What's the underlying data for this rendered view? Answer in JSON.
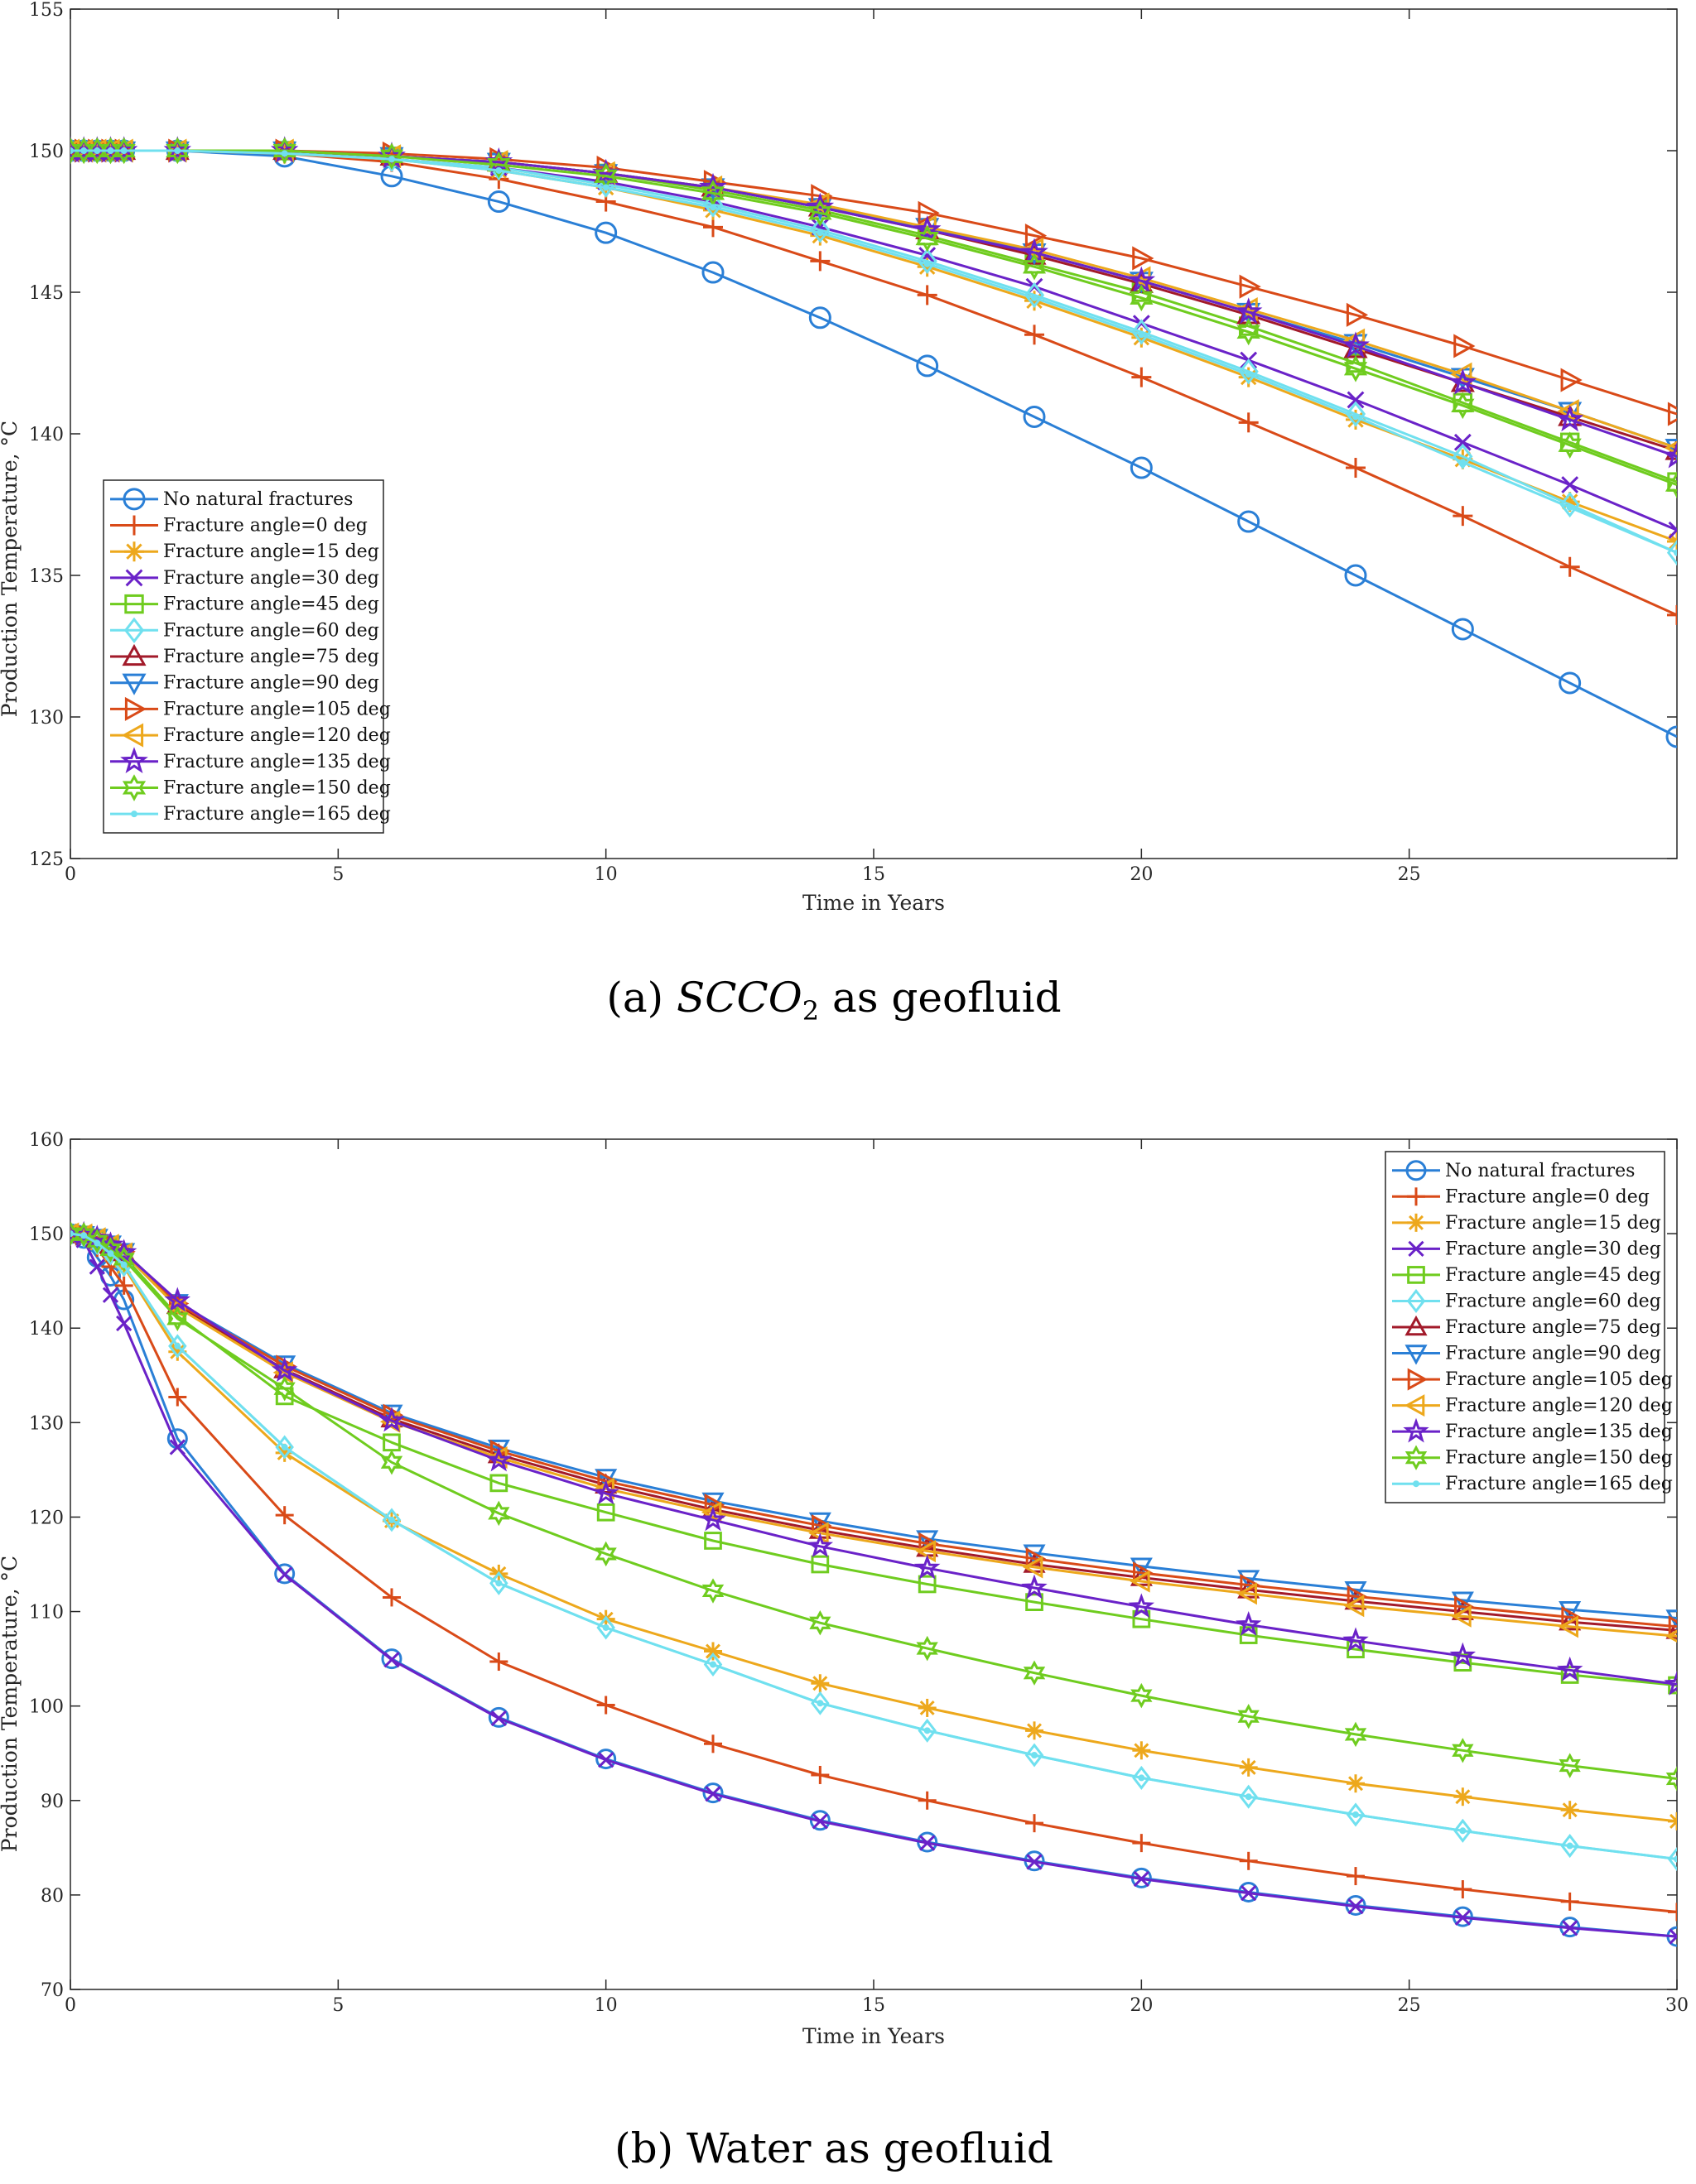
{
  "captions": [
    {
      "prefix": "(a) ",
      "math_main": "SCCO",
      "math_sub": "2",
      "suffix": " as geofluid"
    },
    {
      "prefix": "(b) Water as geofluid",
      "math_main": "",
      "math_sub": "",
      "suffix": ""
    }
  ],
  "series_style": [
    {
      "name": "No natural fractures",
      "color": "#2a7fd6",
      "marker": "circle"
    },
    {
      "name": "Fracture angle=0 deg",
      "color": "#d94a18",
      "marker": "plus"
    },
    {
      "name": "Fracture angle=15 deg",
      "color": "#eda81c",
      "marker": "asterisk"
    },
    {
      "name": "Fracture angle=30 deg",
      "color": "#6a22c8",
      "marker": "cross"
    },
    {
      "name": "Fracture angle=45 deg",
      "color": "#6fcc1f",
      "marker": "square"
    },
    {
      "name": "Fracture angle=60 deg",
      "color": "#70e0ef",
      "marker": "diamond"
    },
    {
      "name": "Fracture angle=75 deg",
      "color": "#a21a2a",
      "marker": "triangle-up"
    },
    {
      "name": "Fracture angle=90 deg",
      "color": "#2a7fd6",
      "marker": "triangle-down"
    },
    {
      "name": "Fracture angle=105 deg",
      "color": "#d94a18",
      "marker": "triangle-right"
    },
    {
      "name": "Fracture angle=120 deg",
      "color": "#eda81c",
      "marker": "triangle-left"
    },
    {
      "name": "Fracture angle=135 deg",
      "color": "#6a22c8",
      "marker": "pentagram"
    },
    {
      "name": "Fracture angle=150 deg",
      "color": "#6fcc1f",
      "marker": "hexagram"
    },
    {
      "name": "Fracture angle=165 deg",
      "color": "#70e0ef",
      "marker": "point"
    }
  ],
  "chart_data": [
    {
      "type": "line",
      "title": "",
      "xlabel": "Time in Years",
      "ylabel": "Production Temperature, °C",
      "xlim": [
        0,
        30
      ],
      "ylim": [
        125,
        155
      ],
      "xticks": [
        0,
        5,
        10,
        15,
        20,
        25
      ],
      "yticks": [
        125,
        130,
        135,
        140,
        145,
        150,
        155
      ],
      "grid": false,
      "legend_position": "lower-left",
      "x": [
        0,
        0.25,
        0.5,
        0.75,
        1,
        2,
        4,
        6,
        8,
        10,
        12,
        14,
        16,
        18,
        20,
        22,
        24,
        26,
        28,
        30
      ],
      "series": [
        {
          "name": "No natural fractures",
          "values": [
            150,
            150,
            150,
            150,
            150,
            150,
            149.8,
            149.1,
            148.2,
            147.1,
            145.7,
            144.1,
            142.4,
            140.6,
            138.8,
            136.9,
            135.0,
            133.1,
            131.2,
            129.3
          ]
        },
        {
          "name": "Fracture angle=0 deg",
          "values": [
            150,
            150,
            150,
            150,
            150,
            150,
            149.9,
            149.6,
            149.0,
            148.2,
            147.3,
            146.1,
            144.9,
            143.5,
            142.0,
            140.4,
            138.8,
            137.1,
            135.3,
            133.6
          ]
        },
        {
          "name": "Fracture angle=15 deg",
          "values": [
            150,
            150,
            150,
            150,
            150,
            150,
            149.9,
            149.7,
            149.3,
            148.7,
            147.9,
            147.0,
            145.9,
            144.7,
            143.4,
            142.0,
            140.5,
            139.1,
            137.6,
            136.2
          ]
        },
        {
          "name": "Fracture angle=30 deg",
          "values": [
            150,
            150,
            150,
            150,
            150,
            150,
            150,
            149.7,
            149.4,
            148.9,
            148.2,
            147.3,
            146.3,
            145.2,
            143.9,
            142.6,
            141.2,
            139.7,
            138.2,
            136.6
          ]
        },
        {
          "name": "Fracture angle=45 deg",
          "values": [
            150,
            150,
            150,
            150,
            150,
            150,
            150,
            149.8,
            149.6,
            149.2,
            148.6,
            147.9,
            147.0,
            146.0,
            145.0,
            143.8,
            142.5,
            141.1,
            139.7,
            138.3
          ]
        },
        {
          "name": "Fracture angle=60 deg",
          "values": [
            150,
            150,
            150,
            150,
            150,
            150,
            150,
            149.7,
            149.4,
            148.8,
            148.1,
            147.2,
            146.1,
            144.9,
            143.6,
            142.2,
            140.7,
            139.2,
            137.5,
            135.8
          ]
        },
        {
          "name": "Fracture angle=75 deg",
          "values": [
            150,
            150,
            150,
            150,
            150,
            150,
            150,
            149.8,
            149.6,
            149.2,
            148.7,
            148.0,
            147.2,
            146.3,
            145.3,
            144.2,
            143.0,
            141.8,
            140.6,
            139.4
          ]
        },
        {
          "name": "Fracture angle=90 deg",
          "values": [
            150,
            150,
            150,
            150,
            150,
            150,
            150,
            149.8,
            149.6,
            149.2,
            148.7,
            148.0,
            147.3,
            146.4,
            145.4,
            144.3,
            143.2,
            142.0,
            140.8,
            139.5
          ]
        },
        {
          "name": "Fracture angle=105 deg",
          "values": [
            150,
            150,
            150,
            150,
            150,
            150,
            150,
            149.9,
            149.7,
            149.4,
            148.9,
            148.4,
            147.8,
            147.0,
            146.2,
            145.2,
            144.2,
            143.1,
            141.9,
            140.7
          ]
        },
        {
          "name": "Fracture angle=120 deg",
          "values": [
            150,
            150,
            150,
            150,
            150,
            150,
            150,
            149.8,
            149.6,
            149.2,
            148.7,
            148.1,
            147.3,
            146.5,
            145.5,
            144.4,
            143.3,
            142.1,
            140.8,
            139.5
          ]
        },
        {
          "name": "Fracture angle=135 deg",
          "values": [
            150,
            150,
            150,
            150,
            150,
            150,
            150,
            149.8,
            149.6,
            149.2,
            148.7,
            148.0,
            147.2,
            146.4,
            145.4,
            144.3,
            143.1,
            141.8,
            140.5,
            139.2
          ]
        },
        {
          "name": "Fracture angle=150 deg",
          "values": [
            150,
            150,
            150,
            150,
            150,
            150,
            150,
            149.8,
            149.5,
            149.1,
            148.5,
            147.8,
            146.9,
            145.9,
            144.8,
            143.6,
            142.3,
            141.0,
            139.6,
            138.2
          ]
        },
        {
          "name": "Fracture angle=165 deg",
          "values": [
            150,
            150,
            150,
            150,
            150,
            150,
            149.9,
            149.7,
            149.3,
            148.7,
            148.0,
            147.1,
            146.0,
            144.8,
            143.5,
            142.1,
            140.6,
            139.0,
            137.4,
            135.8
          ]
        }
      ]
    },
    {
      "type": "line",
      "title": "",
      "xlabel": "Time in Years",
      "ylabel": "Production Temperature, °C",
      "xlim": [
        0,
        30
      ],
      "ylim": [
        70,
        160
      ],
      "xticks": [
        0,
        5,
        10,
        15,
        20,
        25,
        30
      ],
      "yticks": [
        70,
        80,
        90,
        100,
        110,
        120,
        130,
        140,
        150,
        160
      ],
      "grid": false,
      "legend_position": "top-right",
      "x": [
        0,
        0.25,
        0.5,
        0.75,
        1,
        2,
        4,
        6,
        8,
        10,
        12,
        14,
        16,
        18,
        20,
        22,
        24,
        26,
        28,
        30
      ],
      "series": [
        {
          "name": "No natural fractures",
          "values": [
            150,
            149.5,
            147.5,
            145.5,
            143.0,
            128.3,
            114.0,
            105.0,
            98.8,
            94.4,
            90.8,
            87.9,
            85.6,
            83.6,
            81.8,
            80.3,
            78.9,
            77.7,
            76.6,
            75.6
          ]
        },
        {
          "name": "Fracture angle=0 deg",
          "values": [
            150,
            149.7,
            148.5,
            146.5,
            144.5,
            132.7,
            120.2,
            111.5,
            104.7,
            100.1,
            96.0,
            92.7,
            90.0,
            87.6,
            85.5,
            83.6,
            82.0,
            80.6,
            79.3,
            78.2
          ]
        },
        {
          "name": "Fracture angle=15 deg",
          "values": [
            150,
            149.8,
            149.0,
            147.8,
            146.5,
            137.5,
            126.8,
            119.6,
            114.0,
            109.2,
            105.8,
            102.4,
            99.8,
            97.4,
            95.3,
            93.5,
            91.8,
            90.4,
            89.0,
            87.8
          ]
        },
        {
          "name": "Fracture angle=30 deg",
          "values": [
            150,
            149.3,
            146.5,
            143.5,
            140.5,
            127.4,
            113.9,
            104.9,
            98.7,
            94.3,
            90.7,
            87.8,
            85.5,
            83.5,
            81.7,
            80.2,
            78.8,
            77.6,
            76.5,
            75.6
          ]
        },
        {
          "name": "Fracture angle=45 deg",
          "values": [
            150,
            149.9,
            149.4,
            148.6,
            147.6,
            141.3,
            132.8,
            127.9,
            123.6,
            120.5,
            117.5,
            115.0,
            112.9,
            111.0,
            109.2,
            107.5,
            106.0,
            104.6,
            103.3,
            102.2
          ]
        },
        {
          "name": "Fracture angle=60 deg",
          "values": [
            150,
            149.8,
            149.0,
            147.9,
            146.7,
            138.1,
            127.4,
            119.7,
            113.0,
            108.3,
            104.4,
            100.3,
            97.4,
            94.8,
            92.4,
            90.4,
            88.5,
            86.8,
            85.2,
            83.8
          ]
        },
        {
          "name": "Fracture angle=75 deg",
          "values": [
            150,
            149.9,
            149.5,
            148.8,
            148.0,
            142.4,
            135.6,
            130.4,
            126.6,
            123.4,
            120.8,
            118.6,
            116.7,
            115.0,
            113.6,
            112.3,
            111.1,
            110.0,
            108.9,
            108.0
          ]
        },
        {
          "name": "Fracture angle=90 deg",
          "values": [
            150,
            149.9,
            149.6,
            148.9,
            148.1,
            142.7,
            136.2,
            131.0,
            127.3,
            124.2,
            121.7,
            119.6,
            117.7,
            116.2,
            114.8,
            113.5,
            112.3,
            111.2,
            110.2,
            109.3
          ]
        },
        {
          "name": "Fracture angle=105 deg",
          "values": [
            150,
            149.9,
            149.6,
            148.9,
            148.1,
            142.6,
            136.0,
            130.8,
            127.0,
            123.8,
            121.3,
            119.1,
            117.2,
            115.6,
            114.1,
            112.8,
            111.6,
            110.5,
            109.4,
            108.4
          ]
        },
        {
          "name": "Fracture angle=120 deg",
          "values": [
            150,
            149.9,
            149.5,
            148.8,
            147.9,
            142.2,
            135.3,
            130.1,
            126.3,
            123.0,
            120.5,
            118.3,
            116.4,
            114.7,
            113.2,
            111.9,
            110.6,
            109.5,
            108.4,
            107.4
          ]
        },
        {
          "name": "Fracture angle=135 deg",
          "values": [
            150,
            149.9,
            149.5,
            148.8,
            148.0,
            142.9,
            135.5,
            130.2,
            126.0,
            122.5,
            119.7,
            116.9,
            114.6,
            112.5,
            110.5,
            108.6,
            106.9,
            105.3,
            103.8,
            102.3
          ]
        },
        {
          "name": "Fracture angle=150 deg",
          "values": [
            150,
            149.9,
            149.2,
            148.3,
            147.3,
            141.0,
            133.6,
            125.8,
            120.4,
            116.1,
            112.2,
            108.8,
            106.1,
            103.5,
            101.1,
            98.9,
            97.0,
            95.3,
            93.7,
            92.3
          ]
        },
        {
          "name": "Fracture angle=165 deg",
          "values": [
            150,
            149.8,
            149.0,
            147.9,
            146.7,
            138.1,
            127.4,
            119.7,
            113.0,
            108.3,
            104.4,
            100.3,
            97.4,
            94.8,
            92.4,
            90.4,
            88.5,
            86.8,
            85.2,
            83.8
          ]
        }
      ]
    }
  ]
}
